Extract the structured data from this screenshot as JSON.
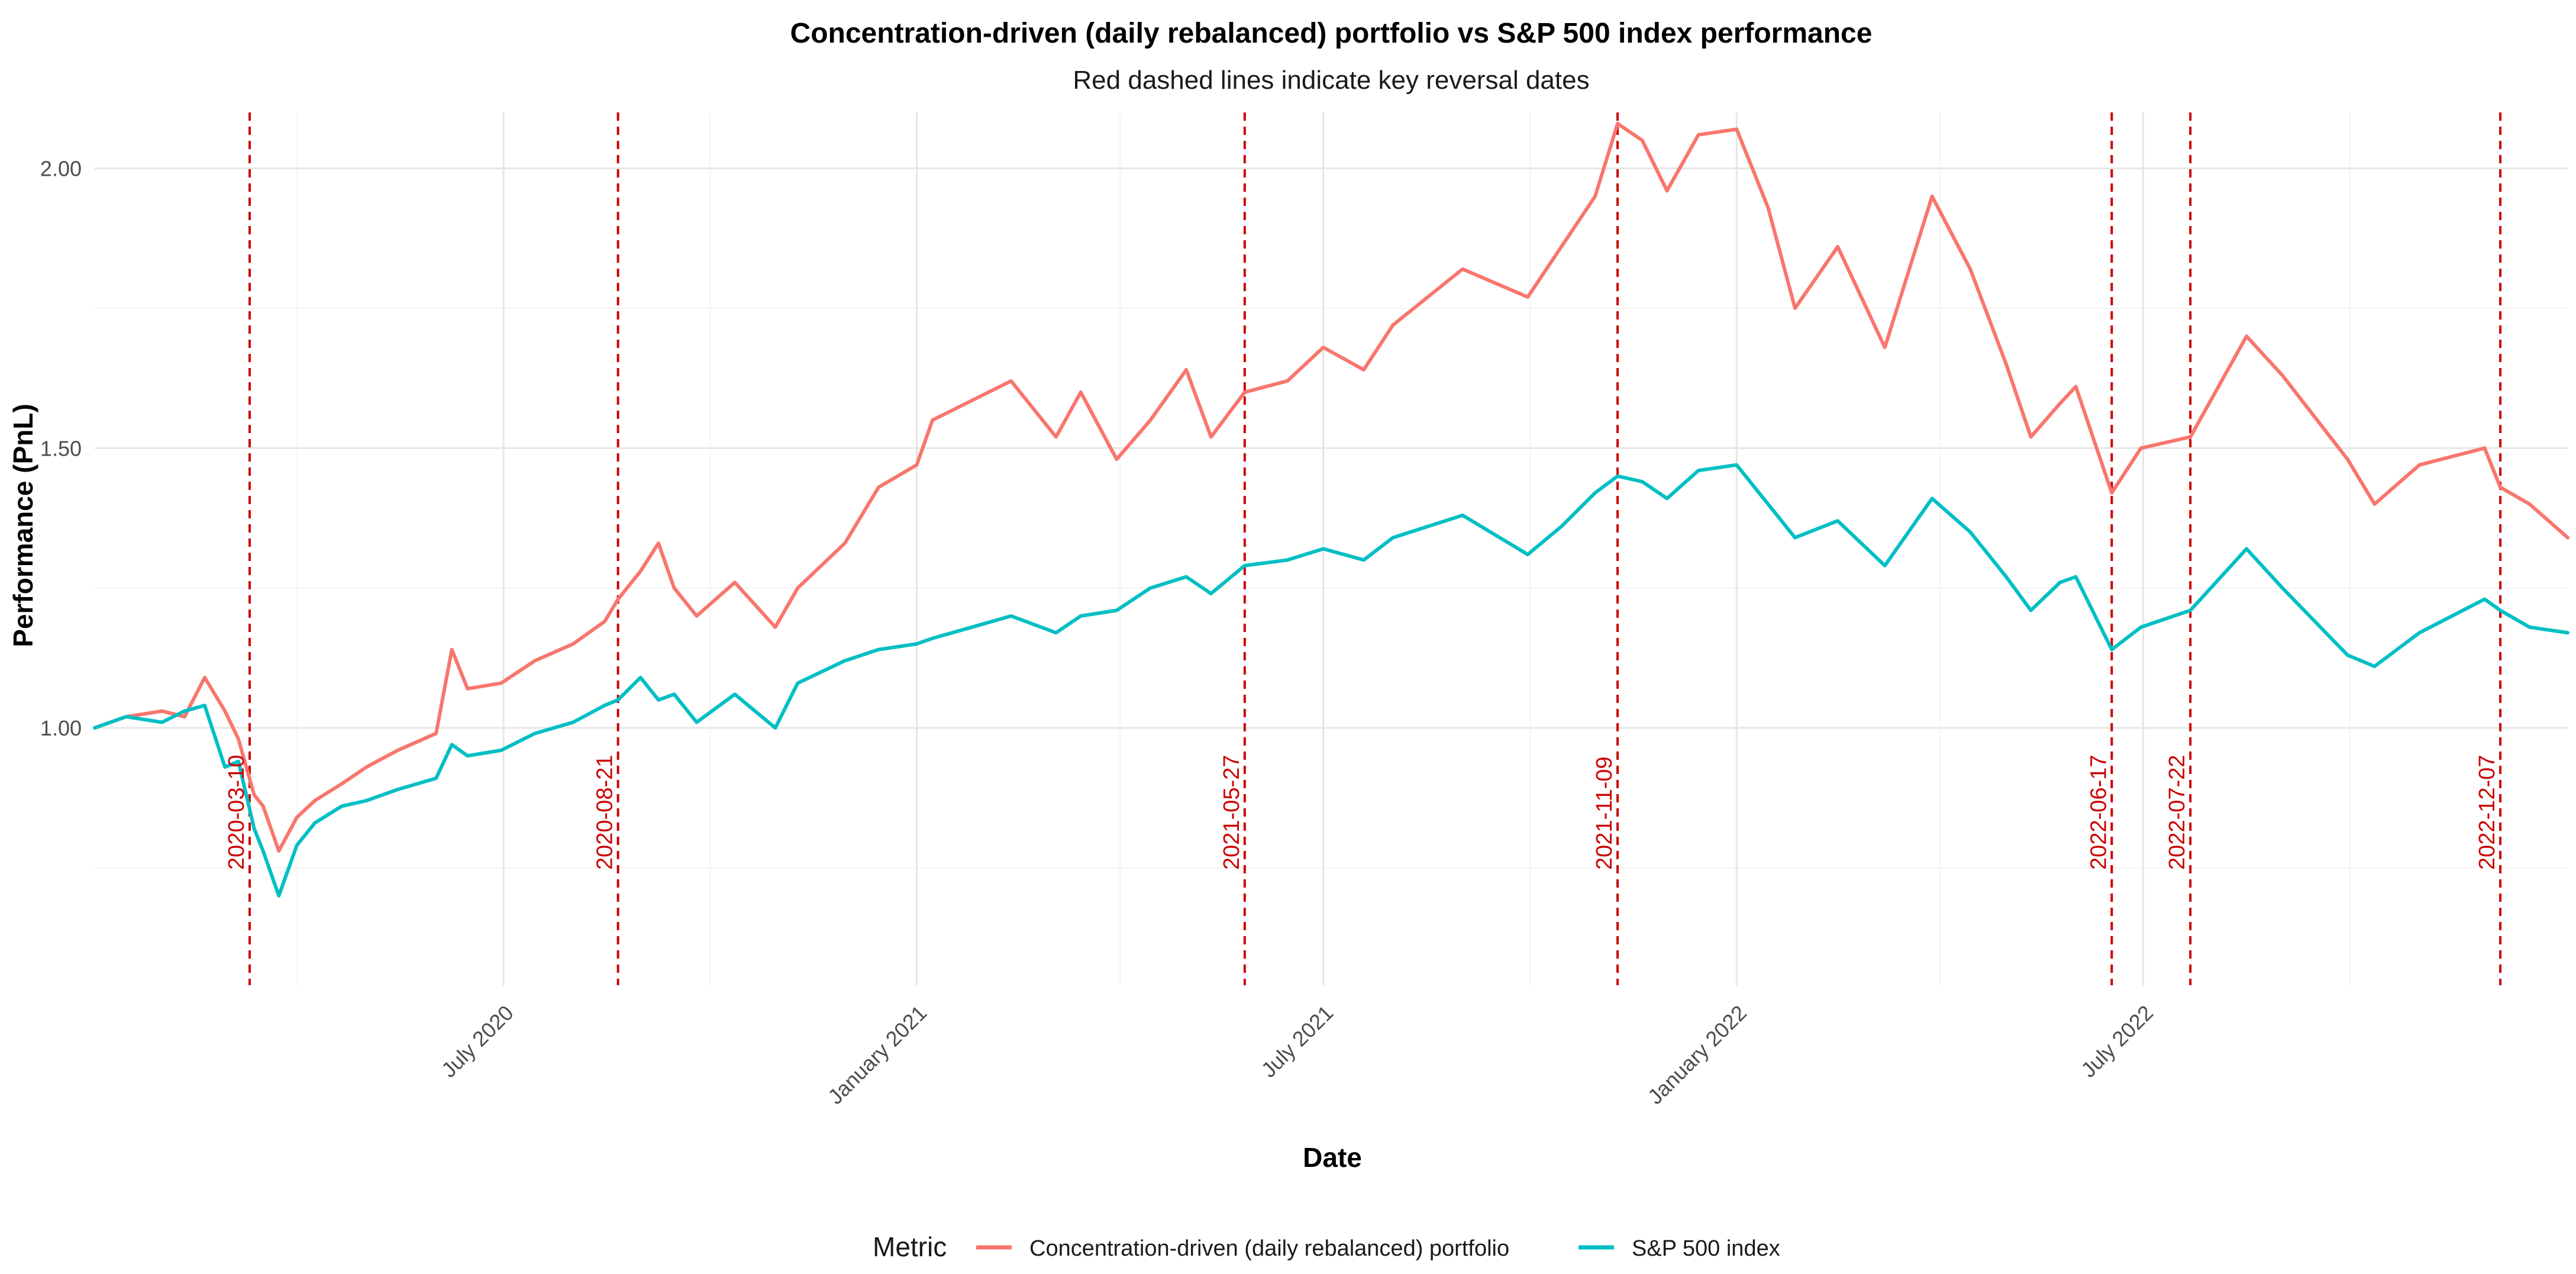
{
  "chart_data": {
    "type": "line",
    "title": "Concentration-driven (daily rebalanced) portfolio vs S&P 500 index performance",
    "subtitle": "Red dashed lines indicate key reversal dates",
    "xlabel": "Date",
    "ylabel": "Performance (PnL)",
    "x_range": [
      "2020-01-01",
      "2023-01-06"
    ],
    "ylim": [
      0.54,
      2.1
    ],
    "grid": true,
    "x_ticks": [
      {
        "date": "2020-07-01",
        "label": "July 2020"
      },
      {
        "date": "2021-01-01",
        "label": "January 2021"
      },
      {
        "date": "2021-07-01",
        "label": "July 2021"
      },
      {
        "date": "2022-01-01",
        "label": "January 2022"
      },
      {
        "date": "2022-07-01",
        "label": "July 2022"
      }
    ],
    "y_ticks": [
      {
        "value": 1.0,
        "label": "1.00"
      },
      {
        "value": 1.5,
        "label": "1.50"
      },
      {
        "value": 2.0,
        "label": "2.00"
      }
    ],
    "reversal_dates": [
      {
        "date": "2020-03-10",
        "label": "2020-03-10"
      },
      {
        "date": "2020-08-21",
        "label": "2020-08-21"
      },
      {
        "date": "2021-05-27",
        "label": "2021-05-27"
      },
      {
        "date": "2021-11-09",
        "label": "2021-11-09"
      },
      {
        "date": "2022-06-17",
        "label": "2022-06-17"
      },
      {
        "date": "2022-07-22",
        "label": "2022-07-22"
      },
      {
        "date": "2022-12-07",
        "label": "2022-12-07"
      }
    ],
    "reversal_color": "#CC0000",
    "legend": {
      "title": "Metric",
      "position": "bottom"
    },
    "series": [
      {
        "name": "Concentration-driven (daily rebalanced) portfolio",
        "color": "#F8766D",
        "points": [
          [
            "2020-01-01",
            1.0
          ],
          [
            "2020-01-15",
            1.02
          ],
          [
            "2020-01-31",
            1.03
          ],
          [
            "2020-02-10",
            1.02
          ],
          [
            "2020-02-19",
            1.09
          ],
          [
            "2020-02-28",
            1.03
          ],
          [
            "2020-03-05",
            0.98
          ],
          [
            "2020-03-12",
            0.88
          ],
          [
            "2020-03-16",
            0.86
          ],
          [
            "2020-03-23",
            0.78
          ],
          [
            "2020-03-31",
            0.84
          ],
          [
            "2020-04-08",
            0.87
          ],
          [
            "2020-04-20",
            0.9
          ],
          [
            "2020-05-01",
            0.93
          ],
          [
            "2020-05-15",
            0.96
          ],
          [
            "2020-06-01",
            0.99
          ],
          [
            "2020-06-08",
            1.14
          ],
          [
            "2020-06-15",
            1.07
          ],
          [
            "2020-06-30",
            1.08
          ],
          [
            "2020-07-15",
            1.12
          ],
          [
            "2020-08-01",
            1.15
          ],
          [
            "2020-08-15",
            1.19
          ],
          [
            "2020-08-21",
            1.23
          ],
          [
            "2020-08-31",
            1.28
          ],
          [
            "2020-09-08",
            1.33
          ],
          [
            "2020-09-15",
            1.25
          ],
          [
            "2020-09-25",
            1.2
          ],
          [
            "2020-10-12",
            1.26
          ],
          [
            "2020-10-30",
            1.18
          ],
          [
            "2020-11-09",
            1.25
          ],
          [
            "2020-11-30",
            1.33
          ],
          [
            "2020-12-15",
            1.43
          ],
          [
            "2021-01-01",
            1.47
          ],
          [
            "2021-01-08",
            1.55
          ],
          [
            "2021-02-12",
            1.62
          ],
          [
            "2021-03-04",
            1.52
          ],
          [
            "2021-03-15",
            1.6
          ],
          [
            "2021-03-31",
            1.48
          ],
          [
            "2021-04-15",
            1.55
          ],
          [
            "2021-05-01",
            1.64
          ],
          [
            "2021-05-12",
            1.52
          ],
          [
            "2021-05-27",
            1.6
          ],
          [
            "2021-06-15",
            1.62
          ],
          [
            "2021-07-01",
            1.68
          ],
          [
            "2021-07-19",
            1.64
          ],
          [
            "2021-08-01",
            1.72
          ],
          [
            "2021-09-01",
            1.82
          ],
          [
            "2021-09-30",
            1.77
          ],
          [
            "2021-10-15",
            1.86
          ],
          [
            "2021-10-30",
            1.95
          ],
          [
            "2021-11-09",
            2.08
          ],
          [
            "2021-11-20",
            2.05
          ],
          [
            "2021-12-01",
            1.96
          ],
          [
            "2021-12-15",
            2.06
          ],
          [
            "2022-01-01",
            2.07
          ],
          [
            "2022-01-15",
            1.93
          ],
          [
            "2022-01-27",
            1.75
          ],
          [
            "2022-02-15",
            1.86
          ],
          [
            "2022-03-08",
            1.68
          ],
          [
            "2022-03-29",
            1.95
          ],
          [
            "2022-04-15",
            1.82
          ],
          [
            "2022-05-01",
            1.65
          ],
          [
            "2022-05-12",
            1.52
          ],
          [
            "2022-05-25",
            1.58
          ],
          [
            "2022-06-01",
            1.61
          ],
          [
            "2022-06-17",
            1.42
          ],
          [
            "2022-06-30",
            1.5
          ],
          [
            "2022-07-22",
            1.52
          ],
          [
            "2022-08-16",
            1.7
          ],
          [
            "2022-09-01",
            1.63
          ],
          [
            "2022-09-30",
            1.48
          ],
          [
            "2022-10-12",
            1.4
          ],
          [
            "2022-11-01",
            1.47
          ],
          [
            "2022-11-30",
            1.5
          ],
          [
            "2022-12-07",
            1.43
          ],
          [
            "2022-12-20",
            1.4
          ],
          [
            "2023-01-06",
            1.34
          ]
        ]
      },
      {
        "name": "S&P 500 index",
        "color": "#00BFC4",
        "points": [
          [
            "2020-01-01",
            1.0
          ],
          [
            "2020-01-15",
            1.02
          ],
          [
            "2020-01-31",
            1.01
          ],
          [
            "2020-02-10",
            1.03
          ],
          [
            "2020-02-19",
            1.04
          ],
          [
            "2020-02-28",
            0.93
          ],
          [
            "2020-03-05",
            0.94
          ],
          [
            "2020-03-12",
            0.82
          ],
          [
            "2020-03-16",
            0.78
          ],
          [
            "2020-03-23",
            0.7
          ],
          [
            "2020-03-31",
            0.79
          ],
          [
            "2020-04-08",
            0.83
          ],
          [
            "2020-04-20",
            0.86
          ],
          [
            "2020-05-01",
            0.87
          ],
          [
            "2020-05-15",
            0.89
          ],
          [
            "2020-06-01",
            0.91
          ],
          [
            "2020-06-08",
            0.97
          ],
          [
            "2020-06-15",
            0.95
          ],
          [
            "2020-06-30",
            0.96
          ],
          [
            "2020-07-15",
            0.99
          ],
          [
            "2020-08-01",
            1.01
          ],
          [
            "2020-08-15",
            1.04
          ],
          [
            "2020-08-21",
            1.05
          ],
          [
            "2020-08-31",
            1.09
          ],
          [
            "2020-09-08",
            1.05
          ],
          [
            "2020-09-15",
            1.06
          ],
          [
            "2020-09-25",
            1.01
          ],
          [
            "2020-10-12",
            1.06
          ],
          [
            "2020-10-30",
            1.0
          ],
          [
            "2020-11-09",
            1.08
          ],
          [
            "2020-11-30",
            1.12
          ],
          [
            "2020-12-15",
            1.14
          ],
          [
            "2021-01-01",
            1.15
          ],
          [
            "2021-01-08",
            1.16
          ],
          [
            "2021-02-12",
            1.2
          ],
          [
            "2021-03-04",
            1.17
          ],
          [
            "2021-03-15",
            1.2
          ],
          [
            "2021-03-31",
            1.21
          ],
          [
            "2021-04-15",
            1.25
          ],
          [
            "2021-05-01",
            1.27
          ],
          [
            "2021-05-12",
            1.24
          ],
          [
            "2021-05-27",
            1.29
          ],
          [
            "2021-06-15",
            1.3
          ],
          [
            "2021-07-01",
            1.32
          ],
          [
            "2021-07-19",
            1.3
          ],
          [
            "2021-08-01",
            1.34
          ],
          [
            "2021-09-01",
            1.38
          ],
          [
            "2021-09-30",
            1.31
          ],
          [
            "2021-10-15",
            1.36
          ],
          [
            "2021-10-30",
            1.42
          ],
          [
            "2021-11-09",
            1.45
          ],
          [
            "2021-11-20",
            1.44
          ],
          [
            "2021-12-01",
            1.41
          ],
          [
            "2021-12-15",
            1.46
          ],
          [
            "2022-01-01",
            1.47
          ],
          [
            "2022-01-15",
            1.4
          ],
          [
            "2022-01-27",
            1.34
          ],
          [
            "2022-02-15",
            1.37
          ],
          [
            "2022-03-08",
            1.29
          ],
          [
            "2022-03-29",
            1.41
          ],
          [
            "2022-04-15",
            1.35
          ],
          [
            "2022-05-01",
            1.27
          ],
          [
            "2022-05-12",
            1.21
          ],
          [
            "2022-05-25",
            1.26
          ],
          [
            "2022-06-01",
            1.27
          ],
          [
            "2022-06-17",
            1.14
          ],
          [
            "2022-06-30",
            1.18
          ],
          [
            "2022-07-22",
            1.21
          ],
          [
            "2022-08-16",
            1.32
          ],
          [
            "2022-09-01",
            1.25
          ],
          [
            "2022-09-30",
            1.13
          ],
          [
            "2022-10-12",
            1.11
          ],
          [
            "2022-11-01",
            1.17
          ],
          [
            "2022-11-30",
            1.23
          ],
          [
            "2022-12-07",
            1.21
          ],
          [
            "2022-12-20",
            1.18
          ],
          [
            "2023-01-06",
            1.17
          ]
        ]
      }
    ]
  }
}
